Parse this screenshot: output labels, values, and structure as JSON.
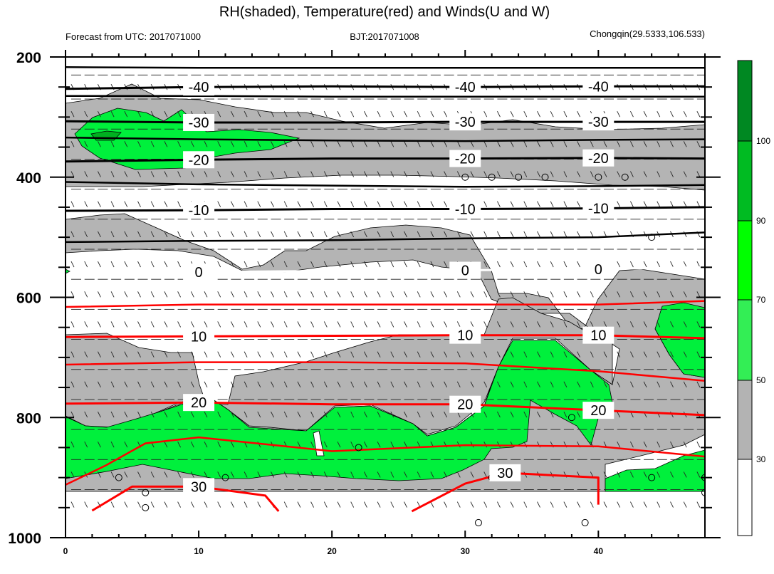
{
  "chart_data": {
    "type": "contour-cross-section",
    "title": "RH(shaded), Temperature(red) and Winds(U and W)",
    "subtitle_left": "Forecast from UTC: 2017071000",
    "subtitle_center": "BJT:2017071008",
    "subtitle_right": "Chongqin(29.5333,106.533)",
    "x_ticks": [
      0,
      10,
      20,
      30,
      40
    ],
    "xlim": [
      0,
      48
    ],
    "y_ticks": [
      200,
      400,
      600,
      800,
      1000
    ],
    "ylim": [
      1000,
      200
    ],
    "y_inverted": true,
    "colorbar": {
      "levels": [
        30,
        50,
        70,
        90,
        100
      ],
      "labels": [
        "30",
        "50",
        "70",
        "90",
        "100"
      ],
      "colors": [
        "#ffffff",
        "#b3b3b3",
        "#33ee55",
        "#00ff00",
        "#00bb22",
        "#008822"
      ]
    },
    "temperature_contours": [
      {
        "label": "-40",
        "color": "#000000",
        "points": [
          [
            0,
            253
          ],
          [
            10,
            250
          ],
          [
            20,
            249
          ],
          [
            30,
            250
          ],
          [
            40,
            249
          ],
          [
            48,
            249
          ]
        ]
      },
      {
        "label": "-30",
        "color": "#000000",
        "points": [
          [
            0,
            307
          ],
          [
            10,
            309
          ],
          [
            20,
            309
          ],
          [
            30,
            308
          ],
          [
            40,
            308
          ],
          [
            48,
            308
          ]
        ]
      },
      {
        "label": "-20",
        "color": "#000000",
        "points": [
          [
            0,
            374
          ],
          [
            10,
            371
          ],
          [
            20,
            369
          ],
          [
            30,
            369
          ],
          [
            40,
            368
          ],
          [
            48,
            369
          ]
        ]
      },
      {
        "label": "-10",
        "color": "#000000",
        "points": [
          [
            0,
            456
          ],
          [
            10,
            455
          ],
          [
            20,
            453
          ],
          [
            30,
            453
          ],
          [
            40,
            452
          ],
          [
            48,
            450
          ]
        ]
      },
      {
        "label": "0",
        "color": "#ffffff",
        "points": [
          [
            0,
            564
          ],
          [
            10,
            558
          ],
          [
            20,
            556
          ],
          [
            30,
            555
          ],
          [
            40,
            553
          ],
          [
            48,
            550
          ]
        ]
      },
      {
        "label": "10",
        "color": "#ff0000",
        "points": [
          [
            0,
            666
          ],
          [
            10,
            665
          ],
          [
            20,
            664
          ],
          [
            30,
            663
          ],
          [
            40,
            663
          ],
          [
            48,
            668
          ]
        ]
      },
      {
        "label": "20",
        "color": "#ff0000",
        "points": [
          [
            0,
            777
          ],
          [
            10,
            775
          ],
          [
            20,
            778
          ],
          [
            30,
            778
          ],
          [
            40,
            788
          ],
          [
            48,
            796
          ]
        ]
      },
      {
        "label": "30",
        "color": "#ff0000",
        "points": [
          [
            16,
            956
          ],
          [
            15,
            930
          ],
          [
            10,
            915
          ],
          [
            5,
            915
          ],
          [
            2,
            955
          ]
        ]
      },
      {
        "label": "30",
        "color": "#ff0000",
        "points": [
          [
            26,
            956
          ],
          [
            30,
            910
          ],
          [
            33,
            892
          ],
          [
            40,
            900
          ],
          [
            40,
            945
          ]
        ]
      }
    ],
    "unlabeled_temperature_contours": [
      {
        "color": "#000000",
        "points": [
          [
            0,
            217
          ],
          [
            10,
            218
          ],
          [
            20,
            218
          ],
          [
            30,
            218
          ],
          [
            40,
            218
          ],
          [
            48,
            218
          ]
        ]
      },
      {
        "color": "#000000",
        "points": [
          [
            0,
            265
          ],
          [
            10,
            265
          ],
          [
            20,
            266
          ],
          [
            30,
            266
          ],
          [
            40,
            266
          ],
          [
            48,
            266
          ]
        ]
      },
      {
        "color": "#000000",
        "points": [
          [
            0,
            334
          ],
          [
            10,
            337
          ],
          [
            20,
            339
          ],
          [
            30,
            340
          ],
          [
            40,
            338
          ],
          [
            48,
            337
          ]
        ]
      },
      {
        "color": "#000000",
        "points": [
          [
            0,
            408
          ],
          [
            10,
            412
          ],
          [
            20,
            414
          ],
          [
            30,
            416
          ],
          [
            40,
            415
          ],
          [
            48,
            413
          ]
        ]
      },
      {
        "color": "#000000",
        "points": [
          [
            0,
            508
          ],
          [
            10,
            506
          ],
          [
            20,
            505
          ],
          [
            30,
            502
          ],
          [
            40,
            500
          ],
          [
            48,
            492
          ]
        ]
      },
      {
        "color": "#ff0000",
        "points": [
          [
            0,
            616
          ],
          [
            10,
            612
          ],
          [
            20,
            612
          ],
          [
            30,
            612
          ],
          [
            40,
            612
          ],
          [
            48,
            606
          ]
        ]
      },
      {
        "color": "#ff0000",
        "points": [
          [
            0,
            712
          ],
          [
            10,
            708
          ],
          [
            20,
            708
          ],
          [
            30,
            710
          ],
          [
            40,
            723
          ],
          [
            48,
            739
          ]
        ]
      },
      {
        "color": "#ff0000",
        "points": [
          [
            0,
            912
          ],
          [
            3,
            880
          ],
          [
            6,
            843
          ],
          [
            10,
            833
          ],
          [
            20,
            856
          ],
          [
            30,
            846
          ],
          [
            40,
            848
          ],
          [
            48,
            865
          ]
        ]
      }
    ],
    "wind_barb_rows": [
      230,
      250,
      270,
      295,
      320,
      345,
      370,
      395,
      420,
      445,
      470,
      495,
      520,
      545,
      570,
      595,
      620,
      645,
      670,
      695,
      720,
      745,
      770,
      795,
      820,
      845,
      870,
      895,
      920,
      945
    ]
  }
}
